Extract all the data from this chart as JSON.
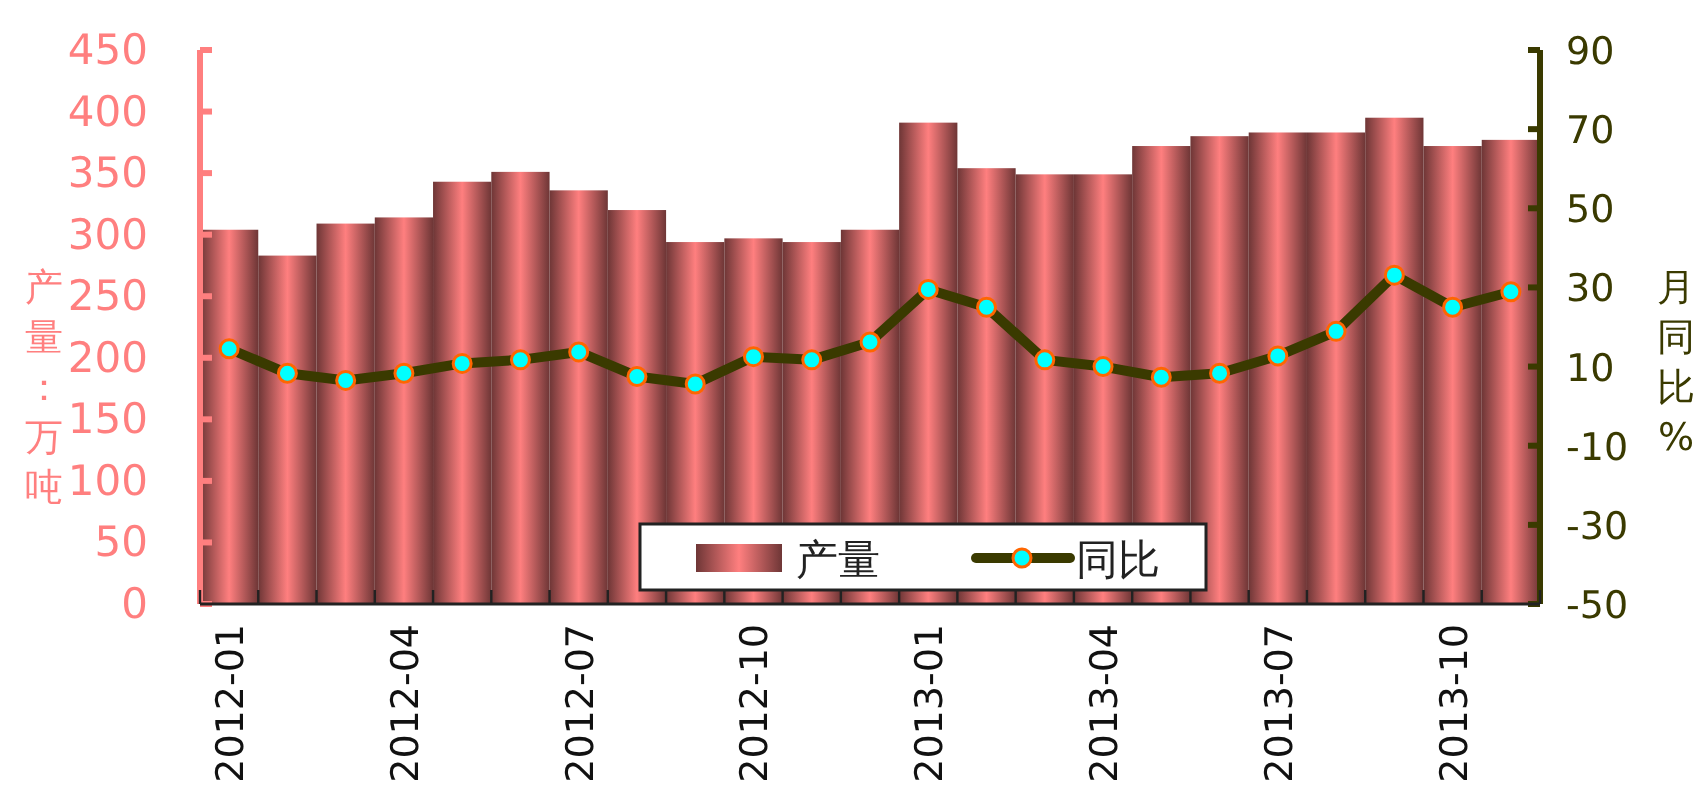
{
  "chart_data": {
    "type": "bar",
    "categories": [
      "2012-01",
      null,
      null,
      "2012-04",
      null,
      null,
      "2012-07",
      null,
      null,
      "2012-10",
      null,
      null,
      "2013-01",
      null,
      null,
      "2013-04",
      null,
      null,
      "2013-07",
      null,
      null,
      "2013-10",
      null
    ],
    "series": [
      {
        "name": "产量",
        "color": "#ff7f7f",
        "values": [
          304,
          283,
          309,
          314,
          343,
          351,
          336,
          320,
          294,
          297,
          294,
          304,
          391,
          354,
          349,
          349,
          372,
          380,
          383,
          383,
          395,
          372,
          377
        ]
      },
      {
        "name": "同比",
        "type": "line",
        "axis": "y2",
        "color": "#3a3a00",
        "values": [
          14.5,
          8.3,
          6.5,
          8.3,
          10.8,
          11.7,
          13.7,
          7.5,
          5.6,
          12.5,
          11.7,
          16.2,
          29.5,
          25.0,
          11.7,
          10.0,
          7.3,
          8.3,
          12.7,
          18.9,
          33.1,
          25.0,
          28.9
        ]
      }
    ],
    "ylabel": "产量：万吨",
    "y2label": "月同比%",
    "ylim": [
      0,
      450
    ],
    "yticks": [
      0,
      50,
      100,
      150,
      200,
      250,
      300,
      350,
      400,
      450
    ],
    "y2lim": [
      -50,
      90
    ],
    "y2ticks": [
      -50,
      -30,
      -10,
      10,
      30,
      50,
      70,
      90
    ],
    "marker": "circle",
    "legend": "bottom",
    "grid": false
  }
}
